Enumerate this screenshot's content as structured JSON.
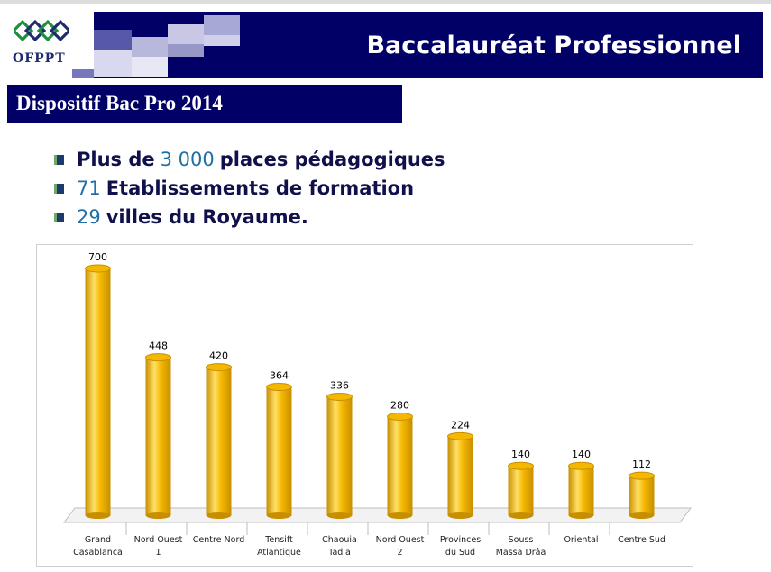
{
  "header": {
    "logo_text": "OFPPT",
    "title": "Baccalauréat Professionnel"
  },
  "subtitle": "Dispositif  Bac Pro 2014",
  "bullets": [
    {
      "pre": "Plus de",
      "num": "3 000",
      "text": "places pédagogiques"
    },
    {
      "pre": "",
      "num": "71",
      "text": "Etablissements de formation"
    },
    {
      "pre": "",
      "num": "29",
      "text": "villes du Royaume."
    }
  ],
  "colors": {
    "header_bg": "#000066",
    "bar": "#f5b800",
    "bar_dark": "#c78f00",
    "bar_light": "#ffe066",
    "number_highlight": "#1f6fa8"
  },
  "chart_data": {
    "type": "bar",
    "categories": [
      [
        "Grand",
        "Casablanca"
      ],
      [
        "Nord Ouest",
        "1"
      ],
      [
        "Centre Nord"
      ],
      [
        "Tensift",
        "Atlantique"
      ],
      [
        "Chaouia",
        "Tadla"
      ],
      [
        "Nord Ouest",
        "2"
      ],
      [
        "Provinces",
        "du Sud"
      ],
      [
        "Souss",
        "Massa Drâa"
      ],
      [
        "Oriental"
      ],
      [
        "Centre Sud"
      ]
    ],
    "values": [
      700,
      448,
      420,
      364,
      336,
      280,
      224,
      140,
      140,
      112
    ],
    "value_labels": [
      "700",
      "448",
      "420",
      "364",
      "336",
      "280",
      "224",
      "140",
      "140",
      "112"
    ],
    "ylim": [
      0,
      700
    ],
    "grid": false,
    "legend": "none",
    "style": "3d-cylinder"
  }
}
